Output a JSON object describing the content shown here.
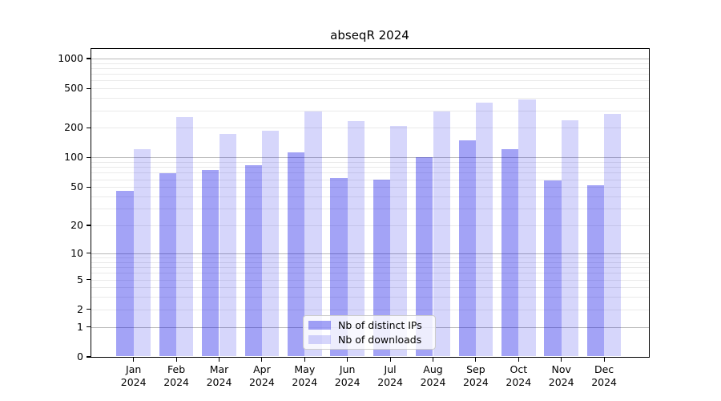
{
  "figure": {
    "title": "abseqR 2024"
  },
  "chart_data": {
    "type": "bar",
    "title": "abseqR 2024",
    "categories": [
      "Jan 2024",
      "Feb 2024",
      "Mar 2024",
      "Apr 2024",
      "May 2024",
      "Jun 2024",
      "Jul 2024",
      "Aug 2024",
      "Sep 2024",
      "Oct 2024",
      "Nov 2024",
      "Dec 2024"
    ],
    "x_tick_months": [
      "Jan",
      "Feb",
      "Mar",
      "Apr",
      "May",
      "Jun",
      "Jul",
      "Aug",
      "Sep",
      "Oct",
      "Nov",
      "Dec"
    ],
    "x_tick_year": "2024",
    "series": [
      {
        "name": "Nb of distinct IPs",
        "values": [
          46,
          69,
          75,
          84,
          113,
          62,
          60,
          100,
          149,
          122,
          58,
          52
        ]
      },
      {
        "name": "Nb of downloads",
        "values": [
          122,
          257,
          174,
          187,
          293,
          234,
          209,
          293,
          361,
          387,
          238,
          278
        ]
      }
    ],
    "xlabel": "",
    "ylabel": "",
    "yscale": "log1p",
    "yticks": [
      1000,
      500,
      200,
      100,
      50,
      20,
      10,
      5,
      2,
      1,
      0
    ],
    "ylim": [
      0,
      1270
    ],
    "grid": true,
    "legend_position": "lower center"
  },
  "legend": {
    "items": [
      {
        "label": "Nb of distinct IPs",
        "color": "rgba(0,0,230,0.36)"
      },
      {
        "label": "Nb of downloads",
        "color": "rgba(0,0,230,0.16)"
      }
    ]
  },
  "colors": {
    "bar_dark": "rgba(0,0,230,0.36)",
    "bar_light": "rgba(0,0,230,0.16)",
    "grid_major": "#b9b9b9",
    "grid_minor": "#eaeaea",
    "spine": "#000000"
  }
}
